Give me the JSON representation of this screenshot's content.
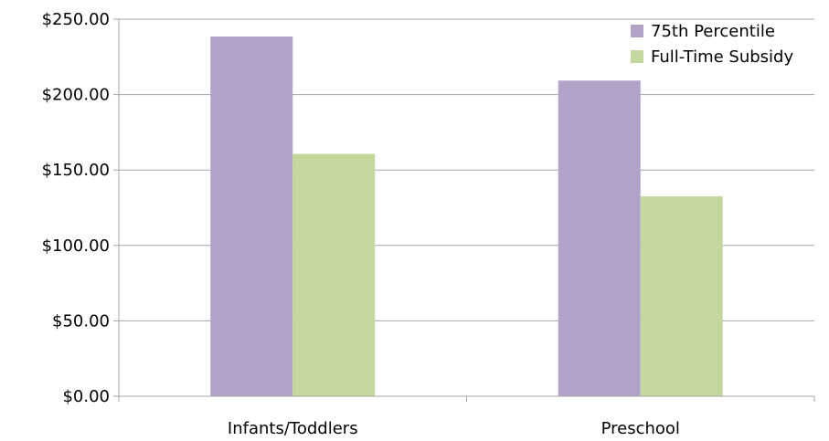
{
  "chart_data": {
    "type": "bar",
    "categories": [
      "Infants/Toddlers",
      "Preschool"
    ],
    "series": [
      {
        "name": "75th Percentile",
        "values": [
          238.5,
          209.3
        ],
        "color": "#b3a2c8"
      },
      {
        "name": "Full-Time Subsidy",
        "values": [
          160.7,
          132.5
        ],
        "color": "#c4d79c"
      }
    ],
    "y_ticks": [
      "$0.00",
      "$50.00",
      "$100.00",
      "$150.00",
      "$200.00",
      "$250.00"
    ],
    "ylim": [
      0,
      250
    ],
    "grid": true,
    "gridline_color": "#a6a6a6",
    "legend_position": "top-right"
  }
}
